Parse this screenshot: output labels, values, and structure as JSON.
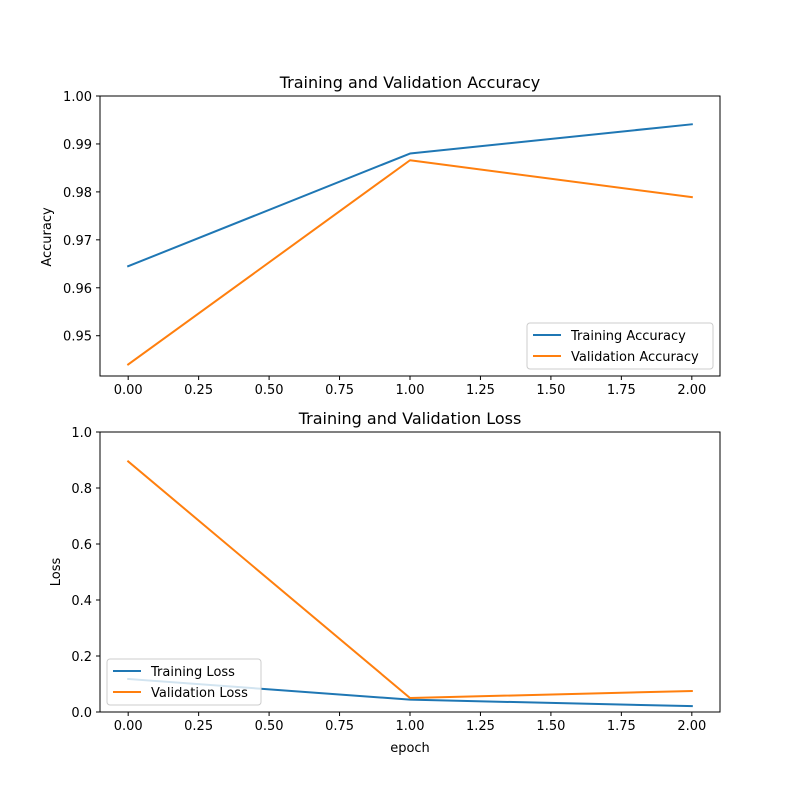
{
  "chart_data": [
    {
      "type": "line",
      "title": "Training and Validation Accuracy",
      "xlabel": "",
      "ylabel": "Accuracy",
      "x": [
        0,
        1,
        2
      ],
      "xlim": [
        -0.1,
        2.1
      ],
      "ylim": [
        0.9416,
        1.0
      ],
      "xticks": [
        0.0,
        0.25,
        0.5,
        0.75,
        1.0,
        1.25,
        1.5,
        1.75,
        2.0
      ],
      "xtick_labels": [
        "0.00",
        "0.25",
        "0.50",
        "0.75",
        "1.00",
        "1.25",
        "1.50",
        "1.75",
        "2.00"
      ],
      "yticks": [
        0.95,
        0.96,
        0.97,
        0.98,
        0.99,
        1.0
      ],
      "ytick_labels": [
        "0.95",
        "0.96",
        "0.97",
        "0.98",
        "0.99",
        "1.00"
      ],
      "grid": false,
      "legend_position": "lower-right",
      "series": [
        {
          "name": "Training Accuracy",
          "color": "#1f77b4",
          "values": [
            0.9645,
            0.988,
            0.9941
          ]
        },
        {
          "name": "Validation Accuracy",
          "color": "#ff7f0e",
          "values": [
            0.944,
            0.9866,
            0.9789
          ]
        }
      ]
    },
    {
      "type": "line",
      "title": "Training and Validation Loss",
      "xlabel": "epoch",
      "ylabel": "Loss",
      "x": [
        0,
        1,
        2
      ],
      "xlim": [
        -0.1,
        2.1
      ],
      "ylim": [
        0.0,
        1.0
      ],
      "xticks": [
        0.0,
        0.25,
        0.5,
        0.75,
        1.0,
        1.25,
        1.5,
        1.75,
        2.0
      ],
      "xtick_labels": [
        "0.00",
        "0.25",
        "0.50",
        "0.75",
        "1.00",
        "1.25",
        "1.50",
        "1.75",
        "2.00"
      ],
      "yticks": [
        0.0,
        0.2,
        0.4,
        0.6,
        0.8,
        1.0
      ],
      "ytick_labels": [
        "0.0",
        "0.2",
        "0.4",
        "0.6",
        "0.8",
        "1.0"
      ],
      "grid": false,
      "legend_position": "lower-left",
      "series": [
        {
          "name": "Training Loss",
          "color": "#1f77b4",
          "values": [
            0.118,
            0.044,
            0.021
          ]
        },
        {
          "name": "Validation Loss",
          "color": "#ff7f0e",
          "values": [
            0.895,
            0.05,
            0.075
          ]
        }
      ]
    }
  ]
}
